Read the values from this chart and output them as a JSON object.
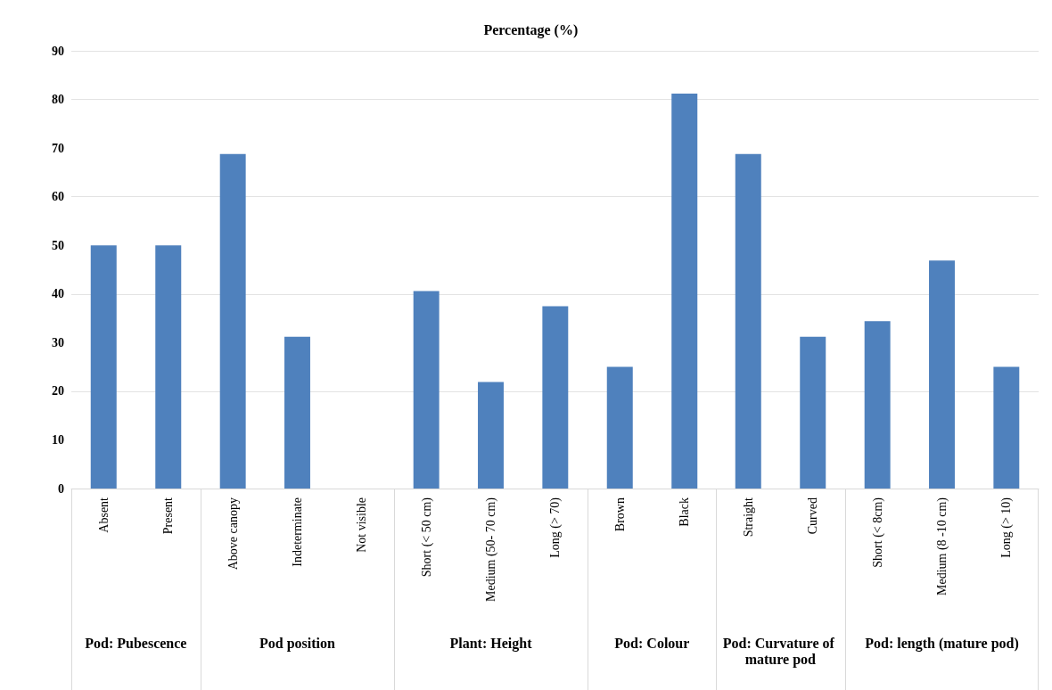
{
  "chart_data": [
    {
      "type": "bar",
      "xlabel": "Pod: Pubescence",
      "categories": [
        "Absent",
        "Present"
      ],
      "values": [
        50,
        50
      ],
      "color": "#4f81bd",
      "ylim": [
        0,
        90
      ],
      "yticks": [
        0,
        10,
        20,
        30,
        40,
        50,
        60,
        70,
        80,
        90
      ],
      "grid": "y"
    },
    {
      "type": "bar",
      "xlabel": "Pod position",
      "categories": [
        "Above canopy",
        "Indeterminate",
        "Not visible"
      ],
      "values": [
        68.8,
        31.2,
        0
      ],
      "color": "#4f81bd",
      "ylim": [
        0,
        90
      ],
      "yticks": [
        0,
        10,
        20,
        30,
        40,
        50,
        60,
        70,
        80,
        90
      ],
      "grid": "y",
      "tick_labels": "x"
    },
    {
      "type": "bar",
      "title": "Percentage (%)",
      "xlabel": "Plant: Height",
      "categories": [
        "Short (< 50 cm)",
        "Medium (50- 70 cm)",
        "Long (> 70)"
      ],
      "values": [
        40.6,
        21.9,
        37.5
      ],
      "color": "#4f81bd",
      "ylim": [
        0,
        90
      ],
      "yticks": [
        0,
        10,
        20,
        30,
        40,
        50,
        60,
        70,
        80,
        90
      ],
      "grid": "y",
      "tick_labels": "x"
    },
    {
      "type": "bar",
      "xlabel": "Pod: Colour",
      "categories": [
        "Brown",
        "Black"
      ],
      "values": [
        25,
        81.2
      ],
      "color": "#4f81bd",
      "ylim": [
        0,
        90
      ],
      "yticks": [
        0,
        10,
        20,
        30,
        40,
        50,
        60,
        70,
        80,
        90
      ],
      "grid": "y",
      "tick_labels": "x"
    },
    {
      "type": "bar",
      "xlabel": "Pod: Curvature of mature pod",
      "categories": [
        "Straight",
        "Curved"
      ],
      "values": [
        68.8,
        31.2
      ],
      "color": "#4f81bd",
      "ylim": [
        0,
        90
      ],
      "yticks": [
        0,
        10,
        20,
        30,
        40,
        50,
        60,
        70,
        80,
        90
      ],
      "grid": "y",
      "tick_labels": "x"
    },
    {
      "type": "bar",
      "xlabel": "Pod: length (mature pod)",
      "categories": [
        "Short (< 8cm)",
        "Medium (8 -10 cm)",
        "Long (> 10)"
      ],
      "values": [
        34.4,
        46.9,
        25
      ],
      "color": "#4f81bd",
      "ylim": [
        0,
        90
      ],
      "yticks": [
        0,
        10,
        20,
        30,
        40,
        50,
        60,
        70,
        80,
        90
      ],
      "grid": "y",
      "tick_labels": "x"
    }
  ]
}
